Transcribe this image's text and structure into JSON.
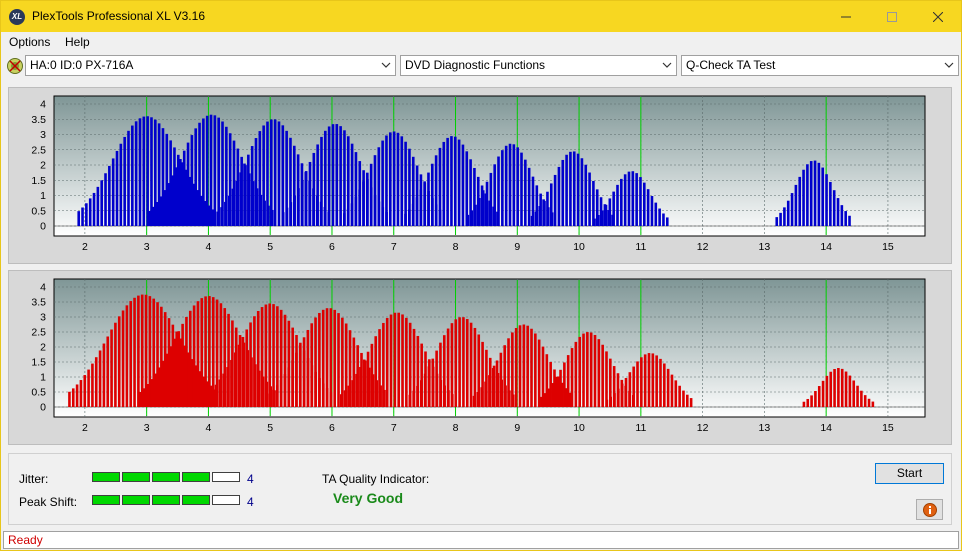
{
  "window": {
    "title": "PlexTools Professional XL V3.16",
    "icon_text": "XL"
  },
  "menu": {
    "items": [
      "Options",
      "Help"
    ]
  },
  "toolbar": {
    "drive": "HA:0 ID:0  PX-716A",
    "function": "DVD Diagnostic Functions",
    "test": "Q-Check TA Test"
  },
  "colors": {
    "titlebar": "#f7d721",
    "top_bars": "#0000cc",
    "bottom_bars": "#dd0000",
    "marker_lines": "#00d000",
    "quality": "#1a8a1a",
    "status": "#d00000"
  },
  "chart_data": [
    {
      "type": "bar",
      "series_color": "blue",
      "x_ticks": [
        "2",
        "3",
        "4",
        "5",
        "6",
        "7",
        "8",
        "9",
        "10",
        "11",
        "12",
        "13",
        "14",
        "15"
      ],
      "y_ticks": [
        "0",
        "0.5",
        "1",
        "1.5",
        "2",
        "2.5",
        "3",
        "3.5",
        "4"
      ],
      "ylim": [
        0,
        4
      ],
      "markers_x": [
        3,
        4,
        5,
        6,
        7,
        8,
        9,
        10,
        11,
        14
      ],
      "peaks": [
        {
          "x": 3.0,
          "height": 3.6,
          "width": 0.55
        },
        {
          "x": 4.05,
          "height": 3.65,
          "width": 0.5
        },
        {
          "x": 5.05,
          "height": 3.5,
          "width": 0.45
        },
        {
          "x": 6.05,
          "height": 3.35,
          "width": 0.42
        },
        {
          "x": 7.0,
          "height": 3.1,
          "width": 0.4
        },
        {
          "x": 7.95,
          "height": 2.95,
          "width": 0.38
        },
        {
          "x": 8.9,
          "height": 2.7,
          "width": 0.35
        },
        {
          "x": 9.9,
          "height": 2.45,
          "width": 0.33
        },
        {
          "x": 10.85,
          "height": 1.8,
          "width": 0.3
        },
        {
          "x": 13.8,
          "height": 2.15,
          "width": 0.3
        }
      ]
    },
    {
      "type": "bar",
      "series_color": "red",
      "x_ticks": [
        "2",
        "3",
        "4",
        "5",
        "6",
        "7",
        "8",
        "9",
        "10",
        "11",
        "12",
        "13",
        "14",
        "15"
      ],
      "y_ticks": [
        "0",
        "0.5",
        "1",
        "1.5",
        "2",
        "2.5",
        "3",
        "3.5",
        "4"
      ],
      "ylim": [
        0,
        4
      ],
      "markers_x": [
        3,
        4,
        5,
        6,
        7,
        8,
        9,
        10,
        11,
        14
      ],
      "peaks": [
        {
          "x": 2.95,
          "height": 3.75,
          "width": 0.6
        },
        {
          "x": 4.0,
          "height": 3.7,
          "width": 0.55
        },
        {
          "x": 5.0,
          "height": 3.45,
          "width": 0.5
        },
        {
          "x": 5.95,
          "height": 3.3,
          "width": 0.48
        },
        {
          "x": 7.05,
          "height": 3.15,
          "width": 0.45
        },
        {
          "x": 8.1,
          "height": 3.0,
          "width": 0.42
        },
        {
          "x": 9.1,
          "height": 2.75,
          "width": 0.4
        },
        {
          "x": 10.15,
          "height": 2.5,
          "width": 0.38
        },
        {
          "x": 11.15,
          "height": 1.8,
          "width": 0.35
        },
        {
          "x": 14.2,
          "height": 1.3,
          "width": 0.28
        }
      ]
    }
  ],
  "results": {
    "jitter_label": "Jitter:",
    "jitter_value": "4",
    "jitter_level": 4,
    "peak_shift_label": "Peak Shift:",
    "peak_shift_value": "4",
    "peak_shift_level": 4,
    "meter_segments": 5,
    "ta_quality_label": "TA Quality Indicator:",
    "ta_quality_value": "Very Good"
  },
  "buttons": {
    "start": "Start"
  },
  "status": {
    "text": "Ready"
  }
}
